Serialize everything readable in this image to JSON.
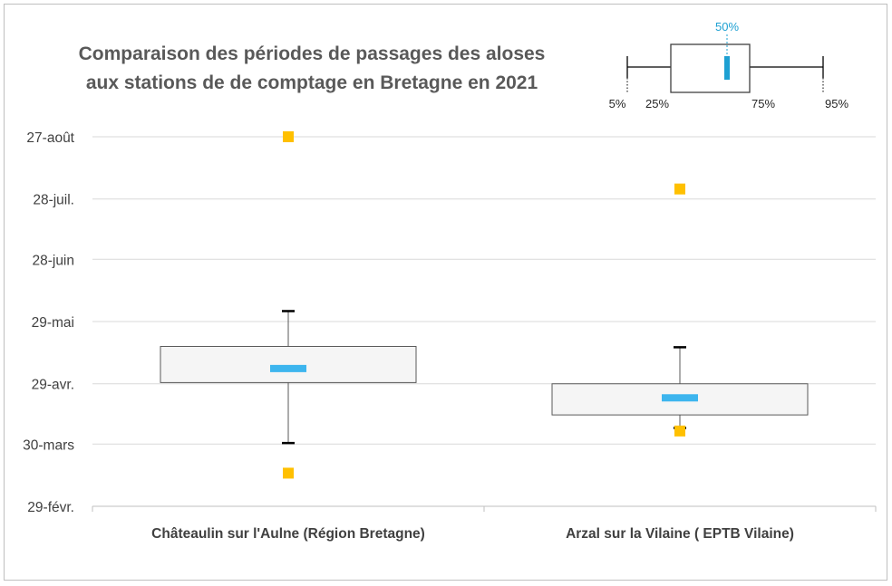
{
  "chart_data": {
    "type": "boxplot",
    "title_lines": [
      "Comparaison des périodes de passages des aloses",
      "aux stations de de comptage en Bretagne en 2021"
    ],
    "y_ticks": [
      {
        "label": "27-août",
        "value": 188
      },
      {
        "label": "28-juil.",
        "value": 157
      },
      {
        "label": "28-juin",
        "value": 127
      },
      {
        "label": "29-mai",
        "value": 96
      },
      {
        "label": "29-avr.",
        "value": 65
      },
      {
        "label": "30-mars",
        "value": 35
      },
      {
        "label": "29-févr.",
        "value": 4
      }
    ],
    "ylim": [
      4,
      188
    ],
    "y_unit": "day of year",
    "grid": true,
    "categories": [
      "Châteaulin sur l'Aulne (Région Bretagne)",
      "Arzal sur la Vilaine ( EPTB Vilaine)"
    ],
    "series": [
      {
        "category": "Châteaulin sur l'Aulne (Région Bretagne)",
        "p5": 35.5,
        "p25": 65.6,
        "median": 72.6,
        "p75": 83.6,
        "p95": 101.2,
        "min": 20.5,
        "max": 188.0
      },
      {
        "category": "Arzal sur la Vilaine ( EPTB Vilaine)",
        "p5": 43.0,
        "p25": 49.5,
        "median": 58.0,
        "p75": 65.0,
        "p95": 83.2,
        "min": 41.5,
        "max": 162.0
      }
    ],
    "legend": {
      "position": "top-right",
      "median_label": "50%",
      "labels": [
        "5%",
        "25%",
        "75%",
        "95%"
      ]
    },
    "colors": {
      "median": "#3db5ee",
      "outlier": "#ffc000",
      "box_fill": "#f5f5f5",
      "box_stroke": "#595959",
      "grid": "#d9d9d9",
      "whisker_cap": "#000000",
      "legend_median": "#1ea0d2"
    }
  }
}
